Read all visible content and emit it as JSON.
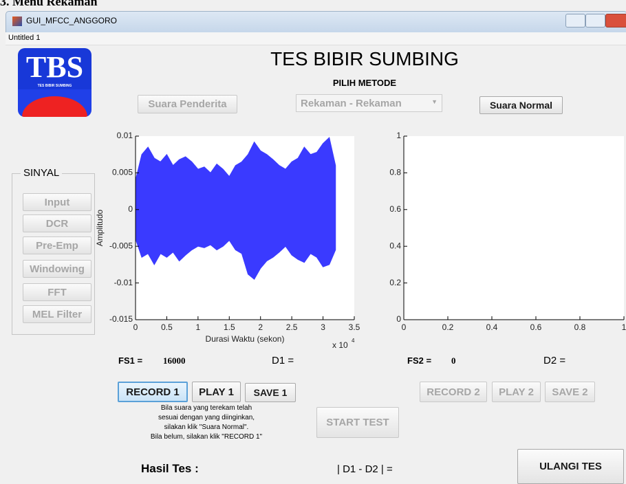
{
  "heading": "3. Menu Rekaman",
  "window": {
    "title": "GUI_MFCC_ANGGORO",
    "menu": "Untitled 1"
  },
  "logo": {
    "text": "TBS",
    "caption": "TES BIBIR SUMBING"
  },
  "title": "TES BIBIR SUMBING",
  "method_label": "PILIH METODE",
  "buttons": {
    "suara_penderita": "Suara Penderita",
    "suara_normal": "Suara Normal",
    "record1": "RECORD 1",
    "play1": "PLAY 1",
    "save1": "SAVE 1",
    "record2": "RECORD 2",
    "play2": "PLAY 2",
    "save2": "SAVE 2",
    "start_test": "START TEST",
    "ulangi": "ULANGI TES"
  },
  "dropdown": "Rekaman - Rekaman",
  "sinyal": {
    "title": "SINYAL",
    "buttons": [
      "Input",
      "DCR",
      "Pre-Emp",
      "Windowing",
      "FFT",
      "MEL Filter"
    ]
  },
  "fs1_label": "FS1 =",
  "fs1_value": "16000",
  "d1_label": "D1 =",
  "fs2_label": "FS2 =",
  "fs2_value": "0",
  "d2_label": "D2 =",
  "instructions": [
    "Bila suara yang terekam telah",
    "sesuai dengan yang diinginkan,",
    "silakan klik \"Suara Normal\".",
    "Bila belum, silakan klik \"RECORD 1\""
  ],
  "result_label": "Hasil Tes :",
  "diff_label": "| D1 - D2 | =",
  "plots": [
    {
      "ylabel": "Amplitudo",
      "xlabel": "Durasi Waktu (sekon)",
      "multiplier": "x 10",
      "exponent": "4",
      "xlim": [
        0,
        35000
      ],
      "ylim": [
        -0.015,
        0.01
      ],
      "xticks": [
        0,
        {
          "value": 5000,
          "label": "0.5"
        },
        {
          "value": 10000,
          "label": "1"
        },
        {
          "value": 15000,
          "label": "1.5"
        },
        {
          "value": 20000,
          "label": "2"
        },
        {
          "value": 25000,
          "label": "2.5"
        },
        {
          "value": 30000,
          "label": "3"
        },
        {
          "value": 35000,
          "label": "3.5"
        }
      ],
      "yticks": [
        0.01,
        0.005,
        0,
        -0.005,
        -0.01,
        -0.015
      ],
      "color": "#3a3aff",
      "waveform": {
        "x": [
          0,
          1000,
          2000,
          3000,
          4000,
          5000,
          6000,
          7000,
          8000,
          9000,
          10000,
          11000,
          12000,
          13000,
          14000,
          15000,
          16000,
          17000,
          18000,
          19000,
          20000,
          21000,
          22000,
          23000,
          24000,
          25000,
          26000,
          27000,
          28000,
          29000,
          30000,
          31000,
          32000
        ],
        "upper": [
          0.004,
          0.0075,
          0.0085,
          0.007,
          0.0065,
          0.0075,
          0.006,
          0.0068,
          0.0072,
          0.0065,
          0.0055,
          0.0058,
          0.005,
          0.0062,
          0.0055,
          0.0045,
          0.006,
          0.0065,
          0.0075,
          0.0092,
          0.008,
          0.0075,
          0.0068,
          0.006,
          0.0055,
          0.0065,
          0.007,
          0.0085,
          0.0075,
          0.0078,
          0.009,
          0.0098,
          0.006
        ],
        "lower": [
          -0.004,
          -0.0065,
          -0.006,
          -0.0075,
          -0.006,
          -0.0065,
          -0.0058,
          -0.007,
          -0.0062,
          -0.0055,
          -0.005,
          -0.0052,
          -0.0048,
          -0.0055,
          -0.005,
          -0.0042,
          -0.0055,
          -0.006,
          -0.0088,
          -0.0095,
          -0.008,
          -0.007,
          -0.0065,
          -0.0058,
          -0.005,
          -0.0062,
          -0.0068,
          -0.0072,
          -0.006,
          -0.0065,
          -0.0078,
          -0.0075,
          -0.0055
        ]
      }
    },
    {
      "xlim": [
        0,
        1
      ],
      "ylim": [
        0,
        1
      ],
      "xticks": [
        0,
        0.2,
        0.4,
        0.6,
        0.8,
        1
      ],
      "yticks": [
        0,
        0.2,
        0.4,
        0.6,
        0.8,
        1
      ]
    }
  ]
}
